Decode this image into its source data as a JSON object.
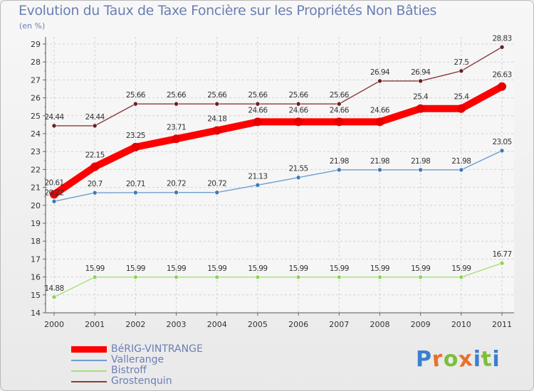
{
  "title": "Evolution du Taux de Taxe Foncière sur les Propriétés Non Bâties",
  "subtitle": "(en %)",
  "brand": {
    "letters": [
      "P",
      "r",
      "o",
      "x",
      "i",
      "t",
      "i"
    ],
    "colors": [
      "#3a7fd0",
      "#e9702a",
      "#7cbf3a",
      "#e9702a",
      "#3a7fd0",
      "#7cbf3a",
      "#3a7fd0"
    ]
  },
  "chart_data": {
    "type": "line",
    "title": "Evolution du Taux de Taxe Foncière sur les Propriétés Non Bâties",
    "ylabel": "(en %)",
    "xlabel": "",
    "x": [
      "2000",
      "2001",
      "2002",
      "2003",
      "2004",
      "2005",
      "2006",
      "2007",
      "2008",
      "2009",
      "2010",
      "2011"
    ],
    "ylim": [
      14,
      29
    ],
    "yticks": [
      "14",
      "15",
      "16",
      "17",
      "18",
      "19",
      "20",
      "21",
      "22",
      "23",
      "24",
      "25",
      "26",
      "27",
      "28",
      "29"
    ],
    "grid": true,
    "legend_position": "bottom-left",
    "series": [
      {
        "name": "Grostenquin",
        "color": "#8b3a3a",
        "dot_color": "#6b1f1f",
        "emphasis": false,
        "values": [
          24.44,
          24.44,
          25.66,
          25.66,
          25.66,
          25.66,
          25.66,
          25.66,
          26.94,
          26.94,
          27.5,
          28.83
        ],
        "labels": [
          "24.44",
          "24.44",
          "25.66",
          "25.66",
          "25.66",
          "25.66",
          "25.66",
          "25.66",
          "26.94",
          "26.94",
          "27.5",
          "28.83"
        ]
      },
      {
        "name": "Vallerange",
        "color": "#6e9fd0",
        "dot_color": "#3d79b8",
        "emphasis": false,
        "values": [
          20.22,
          20.7,
          20.71,
          20.72,
          20.72,
          21.13,
          21.55,
          21.98,
          21.98,
          21.98,
          21.98,
          23.05
        ],
        "labels": [
          "20.22",
          "20.7",
          "20.71",
          "20.72",
          "20.72",
          "21.13",
          "21.55",
          "21.98",
          "21.98",
          "21.98",
          "21.98",
          "23.05"
        ]
      },
      {
        "name": "Bistroff",
        "color": "#a6df78",
        "dot_color": "#8fd45a",
        "emphasis": false,
        "values": [
          14.88,
          15.99,
          15.99,
          15.99,
          15.99,
          15.99,
          15.99,
          15.99,
          15.99,
          15.99,
          15.99,
          16.77
        ],
        "labels": [
          "14.88",
          "15.99",
          "15.99",
          "15.99",
          "15.99",
          "15.99",
          "15.99",
          "15.99",
          "15.99",
          "15.99",
          "15.99",
          "16.77"
        ]
      },
      {
        "name": "BéRIG-VINTRANGE",
        "color": "#ff0000",
        "dot_color": "#e60000",
        "emphasis": true,
        "values": [
          20.61,
          22.15,
          23.25,
          23.71,
          24.18,
          24.66,
          24.66,
          24.66,
          24.66,
          25.4,
          25.4,
          26.63
        ],
        "labels": [
          "20.61",
          "22.15",
          "23.25",
          "23.71",
          "24.18",
          "24.66",
          "24.66",
          "24.66",
          "24.66",
          "25.4",
          "25.4",
          "26.63"
        ]
      }
    ],
    "legend_order": [
      "BéRIG-VINTRANGE",
      "Vallerange",
      "Bistroff",
      "Grostenquin"
    ]
  }
}
